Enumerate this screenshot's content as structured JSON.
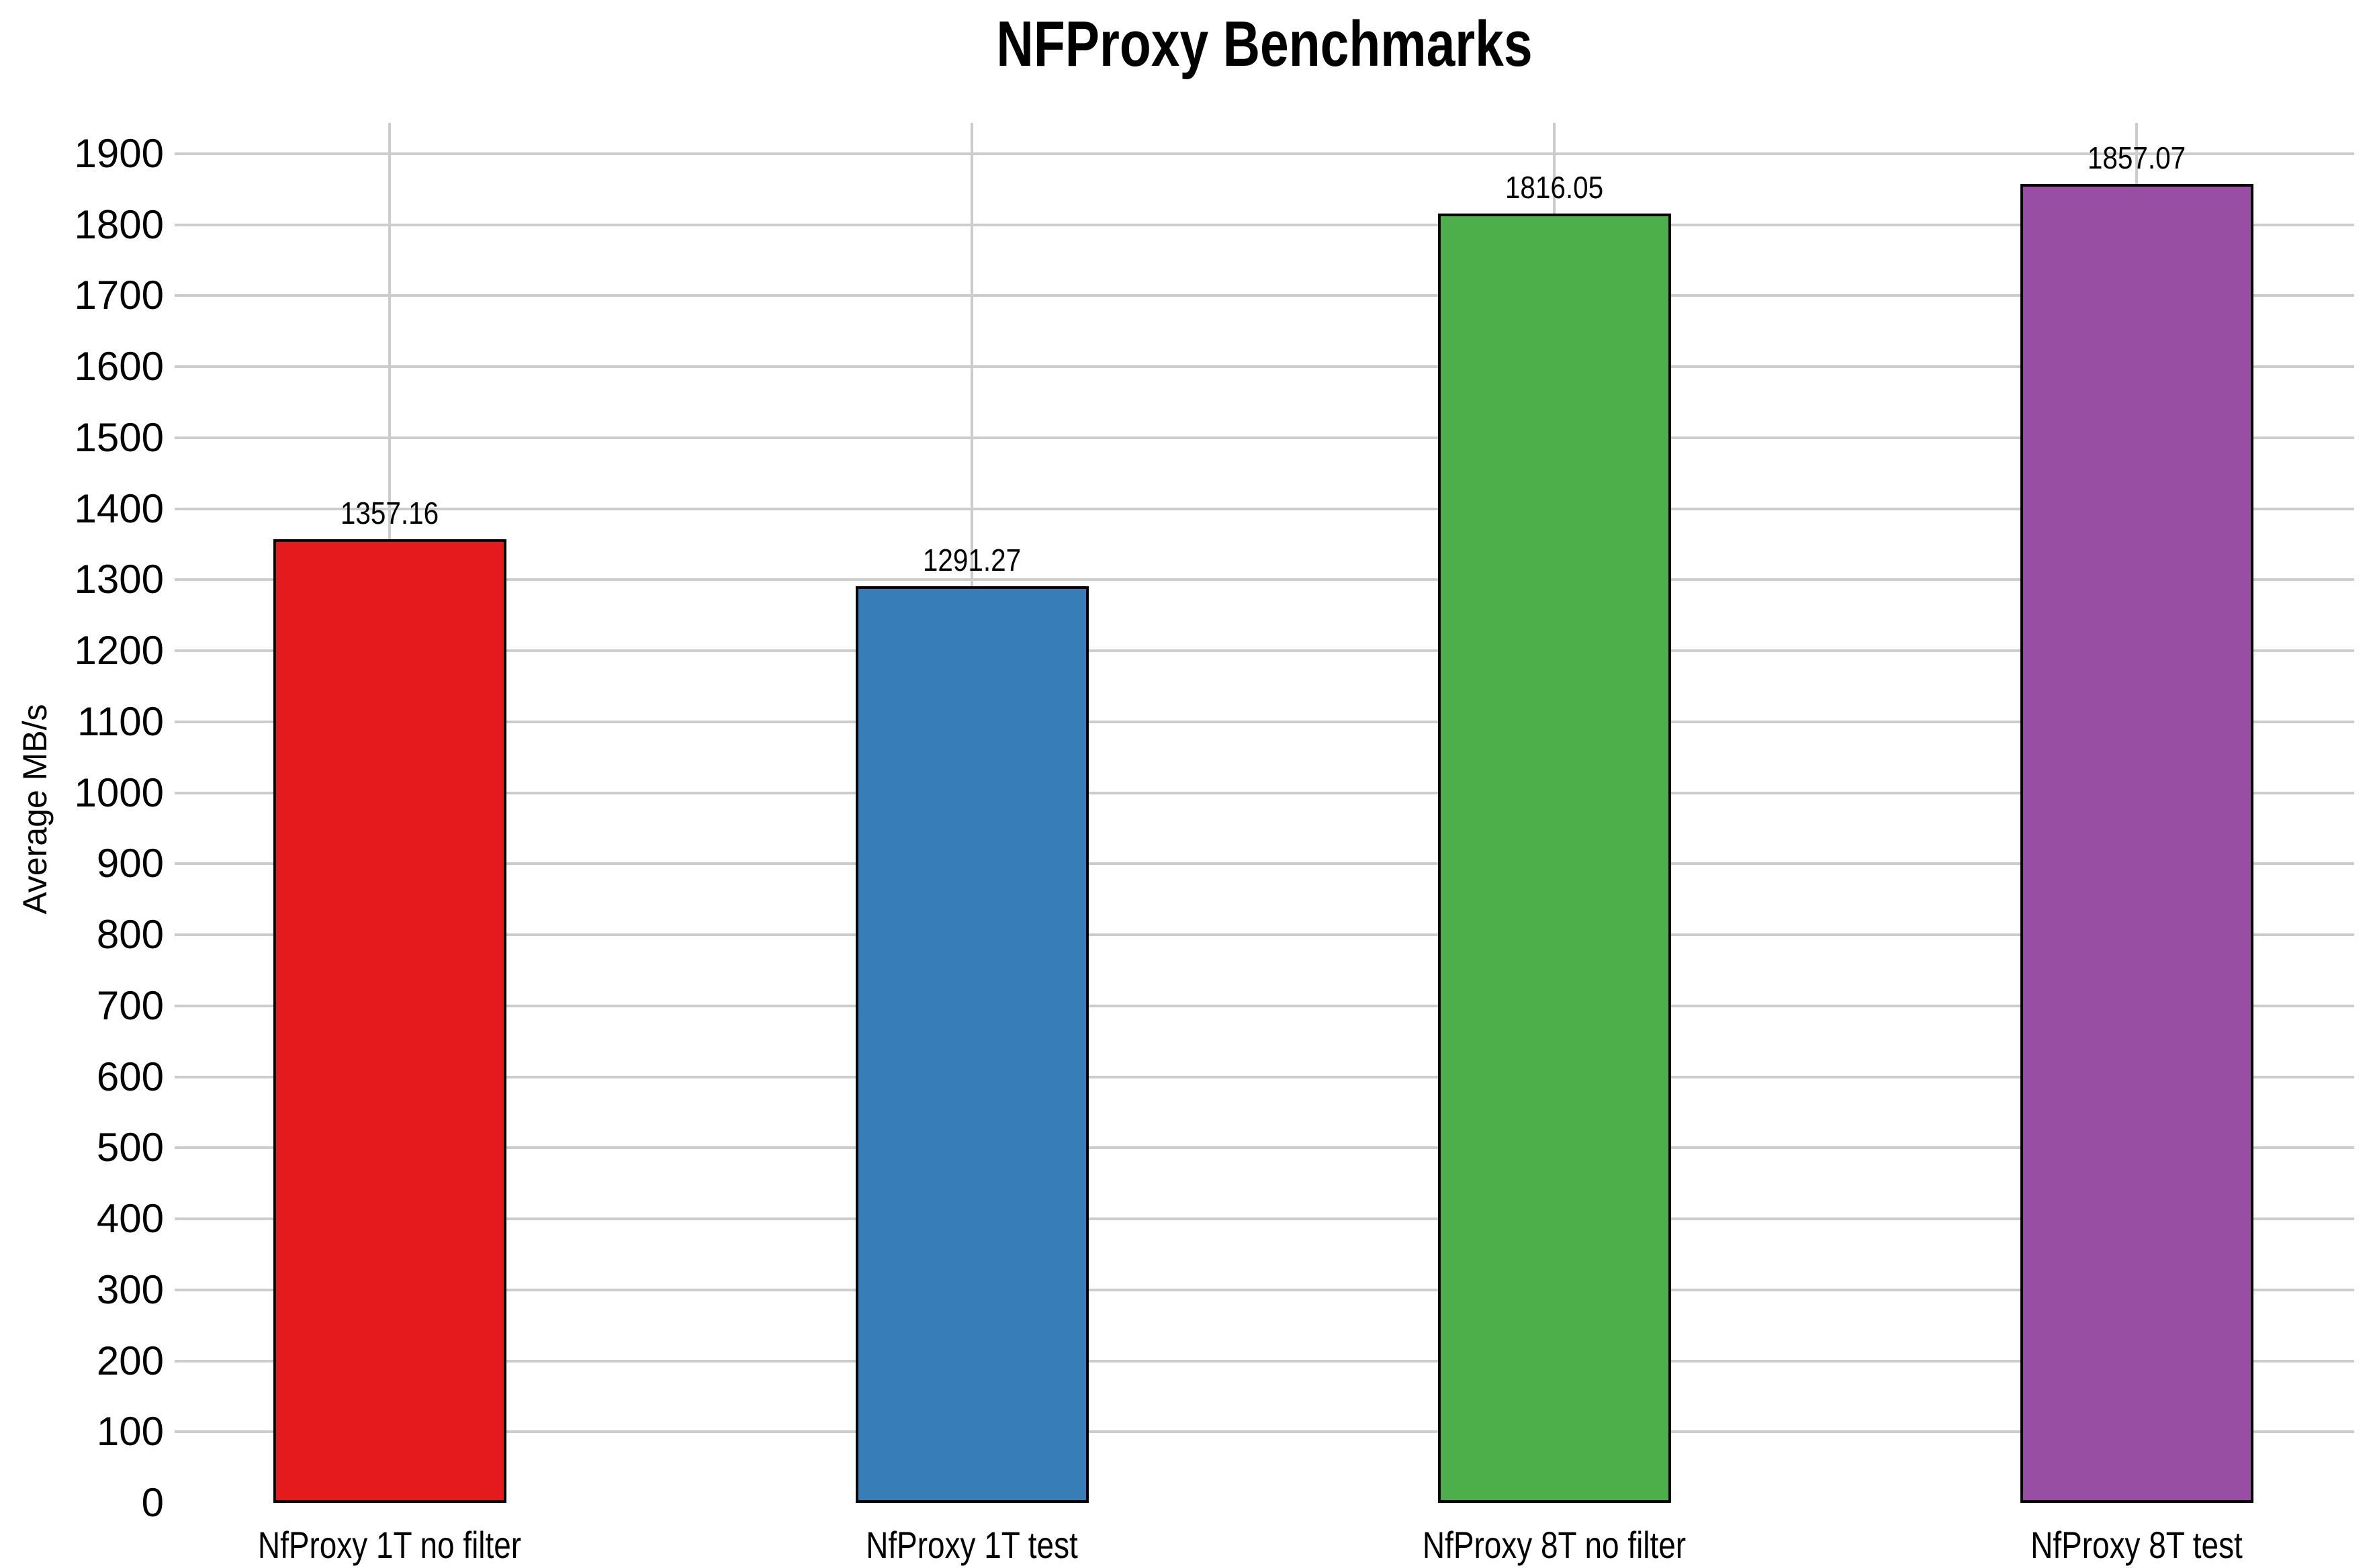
{
  "chart_data": {
    "type": "bar",
    "title": "NFProxy Benchmarks",
    "xlabel": "",
    "ylabel": "Average MB/s",
    "categories": [
      "NfProxy 1T no filter",
      "NfProxy 1T test",
      "NfProxy 8T no filter",
      "NfProxy 8T test"
    ],
    "values": [
      1357.16,
      1291.27,
      1816.05,
      1857.07
    ],
    "value_labels": [
      "1357.16",
      "1291.27",
      "1816.05",
      "1857.07"
    ],
    "bar_colors": [
      "#e41a1c",
      "#377eb8",
      "#4daf4a",
      "#984ea3"
    ],
    "bar_border_color": "#000000",
    "ylim": [
      0,
      1900
    ],
    "ytick_step": 100,
    "ytick_labels": [
      "0",
      "100",
      "200",
      "300",
      "400",
      "500",
      "600",
      "700",
      "800",
      "900",
      "1000",
      "1100",
      "1200",
      "1300",
      "1400",
      "1500",
      "1600",
      "1700",
      "1800",
      "1900"
    ],
    "grid": true,
    "gridline_color": "#cccccc",
    "background_color": "#ffffff",
    "legend": "none",
    "text_color": "#000000"
  }
}
